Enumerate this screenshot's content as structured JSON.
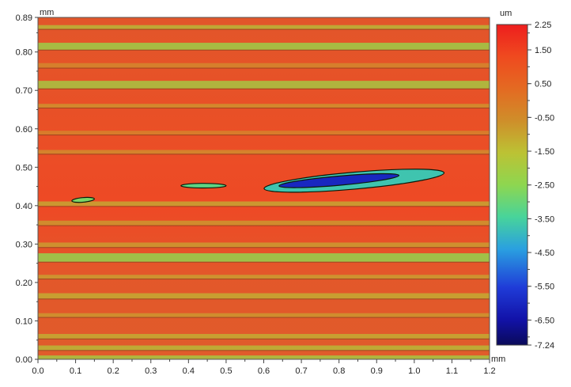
{
  "chart_data": {
    "type": "heatmap",
    "title": "",
    "x_unit": "mm",
    "y_unit": "mm",
    "colorbar_unit": "um",
    "xlim": [
      0,
      1.2
    ],
    "ylim": [
      0,
      0.89
    ],
    "x_ticks": [
      "0.0",
      "0.1",
      "0.2",
      "0.3",
      "0.4",
      "0.5",
      "0.6",
      "0.7",
      "0.8",
      "0.9",
      "1.0",
      "1.1",
      "1.2"
    ],
    "y_ticks": [
      "0.00",
      "0.10",
      "0.20",
      "0.30",
      "0.40",
      "0.50",
      "0.60",
      "0.70",
      "0.80",
      "0.89"
    ],
    "y_tick_values": [
      0,
      0.1,
      0.2,
      0.3,
      0.4,
      0.5,
      0.6,
      0.7,
      0.8,
      0.89
    ],
    "colorbar_range": [
      -7.24,
      2.25
    ],
    "colorbar_ticks": [
      "2.25",
      "1.50",
      "0.50",
      "-0.50",
      "-1.50",
      "-2.50",
      "-3.50",
      "-4.50",
      "-5.50",
      "-6.50",
      "-7.24"
    ],
    "colorbar_tick_values": [
      2.25,
      1.5,
      0.5,
      -0.5,
      -1.5,
      -2.5,
      -3.5,
      -4.5,
      -5.5,
      -6.5,
      -7.24
    ],
    "colors": {
      "surface_base": "#e2562a",
      "surface_high": "#ef4424",
      "low_band": "#b9c63c",
      "valley": "#2222c8",
      "deep": "#0b0b5e"
    },
    "bands": [
      {
        "y": 0.865,
        "h": 0.01,
        "level": -1.6
      },
      {
        "y": 0.815,
        "h": 0.018,
        "level": -2.2
      },
      {
        "y": 0.765,
        "h": 0.012,
        "level": -0.6
      },
      {
        "y": 0.715,
        "h": 0.02,
        "level": -2.0
      },
      {
        "y": 0.66,
        "h": 0.01,
        "level": -0.8
      },
      {
        "y": 0.59,
        "h": 0.01,
        "level": -0.5
      },
      {
        "y": 0.54,
        "h": 0.01,
        "level": -0.7
      },
      {
        "y": 0.405,
        "h": 0.012,
        "level": -1.2
      },
      {
        "y": 0.355,
        "h": 0.012,
        "level": -0.9
      },
      {
        "y": 0.298,
        "h": 0.012,
        "level": -1.0
      },
      {
        "y": 0.265,
        "h": 0.022,
        "level": -2.4
      },
      {
        "y": 0.215,
        "h": 0.01,
        "level": -1.0
      },
      {
        "y": 0.165,
        "h": 0.014,
        "level": -1.3
      },
      {
        "y": 0.115,
        "h": 0.01,
        "level": -0.9
      },
      {
        "y": 0.06,
        "h": 0.012,
        "level": -1.3
      },
      {
        "y": 0.03,
        "h": 0.012,
        "level": -1.6
      },
      {
        "y": 0.005,
        "h": 0.01,
        "level": -2.0
      }
    ],
    "defects": [
      {
        "x": 0.84,
        "y": 0.465,
        "rx": 0.24,
        "ry": 0.022,
        "level": -3.8,
        "angle": -5
      },
      {
        "x": 0.8,
        "y": 0.465,
        "rx": 0.16,
        "ry": 0.012,
        "level": -6.0,
        "angle": -5
      },
      {
        "x": 0.44,
        "y": 0.452,
        "rx": 0.06,
        "ry": 0.006,
        "level": -3.2,
        "angle": 0
      },
      {
        "x": 0.12,
        "y": 0.415,
        "rx": 0.03,
        "ry": 0.006,
        "level": -2.8,
        "angle": -5
      }
    ]
  }
}
